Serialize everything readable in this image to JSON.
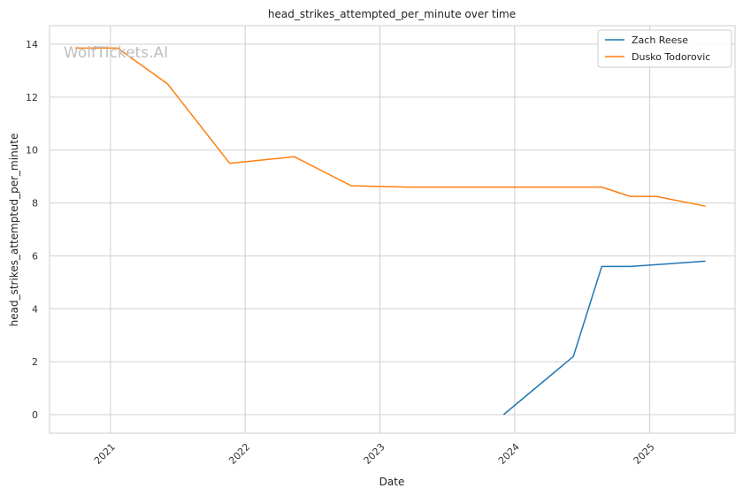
{
  "chart_data": {
    "type": "line",
    "title": "head_strikes_attempted_per_minute over time",
    "xlabel": "Date",
    "ylabel": "head_strikes_attempted_per_minute",
    "watermark": "WolfTickets.AI",
    "xlim": [
      "2020-07-20",
      "2025-08-20"
    ],
    "ylim": [
      -0.7,
      14.7
    ],
    "x_ticks": [
      "2021",
      "2022",
      "2023",
      "2024",
      "2025"
    ],
    "y_ticks": [
      0,
      2,
      4,
      6,
      8,
      10,
      12,
      14
    ],
    "grid": true,
    "legend_position": "top-right",
    "series": [
      {
        "name": "Zach Reese",
        "color": "#1f77b4",
        "points": [
          {
            "x": "2023-12-02",
            "y": 0.0
          },
          {
            "x": "2024-06-08",
            "y": 2.2
          },
          {
            "x": "2024-08-24",
            "y": 5.6
          },
          {
            "x": "2024-11-09",
            "y": 5.6
          },
          {
            "x": "2025-06-01",
            "y": 5.8
          }
        ]
      },
      {
        "name": "Dusko Todorovic",
        "color": "#ff7f0e",
        "points": [
          {
            "x": "2020-09-27",
            "y": 13.85
          },
          {
            "x": "2021-01-20",
            "y": 13.85
          },
          {
            "x": "2021-06-05",
            "y": 12.5
          },
          {
            "x": "2021-11-20",
            "y": 9.5
          },
          {
            "x": "2022-05-14",
            "y": 9.75
          },
          {
            "x": "2022-10-15",
            "y": 8.65
          },
          {
            "x": "2023-03-18",
            "y": 8.6
          },
          {
            "x": "2024-08-24",
            "y": 8.6
          },
          {
            "x": "2024-11-09",
            "y": 8.25
          },
          {
            "x": "2025-01-18",
            "y": 8.25
          },
          {
            "x": "2025-06-01",
            "y": 7.88
          }
        ]
      }
    ]
  }
}
